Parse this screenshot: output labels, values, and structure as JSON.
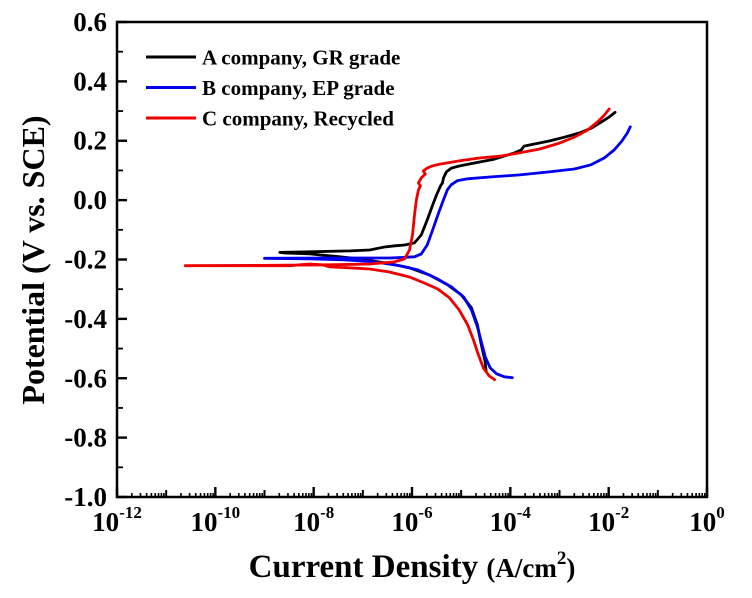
{
  "chart_data": {
    "type": "line",
    "title": "",
    "xlabel": {
      "main": "Current Density ",
      "unit_open": "(A/cm",
      "unit_sup": "2",
      "unit_close": ")"
    },
    "ylabel": "Potential (V vs. SCE)",
    "x_scale": "log10",
    "xlim_exponents": [
      -12,
      0
    ],
    "ylim": [
      -1.0,
      0.6
    ],
    "x_ticks": [
      "-12",
      "-10",
      "-8",
      "-6",
      "-4",
      "-2",
      "0"
    ],
    "x_tick_base": "10",
    "y_ticks": [
      "0.6",
      "0.4",
      "0.2",
      "0.0",
      "-0.2",
      "-0.4",
      "-0.6",
      "-0.8",
      "-1.0"
    ],
    "grid": false,
    "legend_position": "top-left",
    "series": [
      {
        "name": "A company, GR grade",
        "color": "#000000",
        "points": [
          [
            -4.49,
            -0.578
          ],
          [
            -4.52,
            -0.538
          ],
          [
            -4.59,
            -0.487
          ],
          [
            -4.67,
            -0.42
          ],
          [
            -4.79,
            -0.363
          ],
          [
            -5.0,
            -0.319
          ],
          [
            -5.28,
            -0.285
          ],
          [
            -5.65,
            -0.252
          ],
          [
            -6.05,
            -0.228
          ],
          [
            -6.56,
            -0.211
          ],
          [
            -7.07,
            -0.198
          ],
          [
            -7.47,
            -0.191
          ],
          [
            -8.08,
            -0.181
          ],
          [
            -8.59,
            -0.178
          ],
          [
            -8.69,
            -0.176
          ],
          [
            -8.08,
            -0.174
          ],
          [
            -7.26,
            -0.171
          ],
          [
            -6.86,
            -0.168
          ],
          [
            -6.56,
            -0.158
          ],
          [
            -6.35,
            -0.154
          ],
          [
            -6.15,
            -0.151
          ],
          [
            -5.95,
            -0.144
          ],
          [
            -5.81,
            -0.117
          ],
          [
            -5.69,
            -0.067
          ],
          [
            -5.58,
            -0.016
          ],
          [
            -5.5,
            0.018
          ],
          [
            -5.42,
            0.048
          ],
          [
            -5.38,
            0.058
          ],
          [
            -5.36,
            0.075
          ],
          [
            -5.3,
            0.095
          ],
          [
            -5.2,
            0.108
          ],
          [
            -5.04,
            0.115
          ],
          [
            -4.73,
            0.125
          ],
          [
            -4.33,
            0.138
          ],
          [
            -3.92,
            0.159
          ],
          [
            -3.78,
            0.169
          ],
          [
            -3.72,
            0.182
          ],
          [
            -3.51,
            0.189
          ],
          [
            -3.21,
            0.199
          ],
          [
            -2.9,
            0.212
          ],
          [
            -2.6,
            0.226
          ],
          [
            -2.36,
            0.242
          ],
          [
            -2.15,
            0.263
          ],
          [
            -1.99,
            0.28
          ],
          [
            -1.87,
            0.296
          ]
        ]
      },
      {
        "name": "B company, EP grade",
        "color": "#0000ee",
        "points": [
          [
            -3.96,
            -0.598
          ],
          [
            -4.12,
            -0.595
          ],
          [
            -4.28,
            -0.585
          ],
          [
            -4.41,
            -0.565
          ],
          [
            -4.51,
            -0.528
          ],
          [
            -4.59,
            -0.477
          ],
          [
            -4.67,
            -0.427
          ],
          [
            -4.79,
            -0.37
          ],
          [
            -4.95,
            -0.326
          ],
          [
            -5.2,
            -0.292
          ],
          [
            -5.52,
            -0.262
          ],
          [
            -5.88,
            -0.235
          ],
          [
            -6.25,
            -0.221
          ],
          [
            -6.76,
            -0.208
          ],
          [
            -7.37,
            -0.201
          ],
          [
            -8.08,
            -0.198
          ],
          [
            -9.0,
            -0.196
          ],
          [
            -7.67,
            -0.195
          ],
          [
            -6.45,
            -0.195
          ],
          [
            -5.95,
            -0.191
          ],
          [
            -5.81,
            -0.181
          ],
          [
            -5.69,
            -0.151
          ],
          [
            -5.58,
            -0.1
          ],
          [
            -5.46,
            -0.043
          ],
          [
            -5.36,
            0.001
          ],
          [
            -5.28,
            0.035
          ],
          [
            -5.2,
            0.052
          ],
          [
            -5.08,
            0.065
          ],
          [
            -4.87,
            0.072
          ],
          [
            -4.42,
            0.078
          ],
          [
            -3.81,
            0.085
          ],
          [
            -3.21,
            0.095
          ],
          [
            -2.7,
            0.105
          ],
          [
            -2.36,
            0.119
          ],
          [
            -2.09,
            0.142
          ],
          [
            -1.89,
            0.169
          ],
          [
            -1.73,
            0.199
          ],
          [
            -1.62,
            0.226
          ],
          [
            -1.56,
            0.247
          ]
        ]
      },
      {
        "name": "C company, Recycled",
        "color": "#ee0000",
        "points": [
          [
            -4.32,
            -0.605
          ],
          [
            -4.43,
            -0.592
          ],
          [
            -4.55,
            -0.565
          ],
          [
            -4.65,
            -0.521
          ],
          [
            -4.75,
            -0.471
          ],
          [
            -4.87,
            -0.42
          ],
          [
            -5.04,
            -0.37
          ],
          [
            -5.24,
            -0.329
          ],
          [
            -5.48,
            -0.299
          ],
          [
            -5.75,
            -0.279
          ],
          [
            -6.05,
            -0.259
          ],
          [
            -6.46,
            -0.242
          ],
          [
            -6.86,
            -0.232
          ],
          [
            -7.27,
            -0.228
          ],
          [
            -7.67,
            -0.225
          ],
          [
            -7.83,
            -0.218
          ],
          [
            -8.08,
            -0.215
          ],
          [
            -8.28,
            -0.218
          ],
          [
            -8.48,
            -0.221
          ],
          [
            -9.29,
            -0.221
          ],
          [
            -10.61,
            -0.221
          ],
          [
            -9.09,
            -0.22
          ],
          [
            -7.67,
            -0.218
          ],
          [
            -6.86,
            -0.215
          ],
          [
            -6.36,
            -0.208
          ],
          [
            -6.15,
            -0.198
          ],
          [
            -6.05,
            -0.168
          ],
          [
            -5.99,
            -0.117
          ],
          [
            -5.95,
            -0.05
          ],
          [
            -5.91,
            0.001
          ],
          [
            -5.87,
            0.034
          ],
          [
            -5.83,
            0.048
          ],
          [
            -5.87,
            0.058
          ],
          [
            -5.81,
            0.075
          ],
          [
            -5.73,
            0.088
          ],
          [
            -5.77,
            0.098
          ],
          [
            -5.69,
            0.108
          ],
          [
            -5.59,
            0.115
          ],
          [
            -5.44,
            0.121
          ],
          [
            -5.04,
            0.132
          ],
          [
            -4.63,
            0.142
          ],
          [
            -4.22,
            0.148
          ],
          [
            -3.82,
            0.159
          ],
          [
            -3.41,
            0.172
          ],
          [
            -3.0,
            0.192
          ],
          [
            -2.7,
            0.212
          ],
          [
            -2.43,
            0.236
          ],
          [
            -2.23,
            0.263
          ],
          [
            -2.09,
            0.286
          ],
          [
            -1.99,
            0.307
          ]
        ]
      }
    ]
  }
}
